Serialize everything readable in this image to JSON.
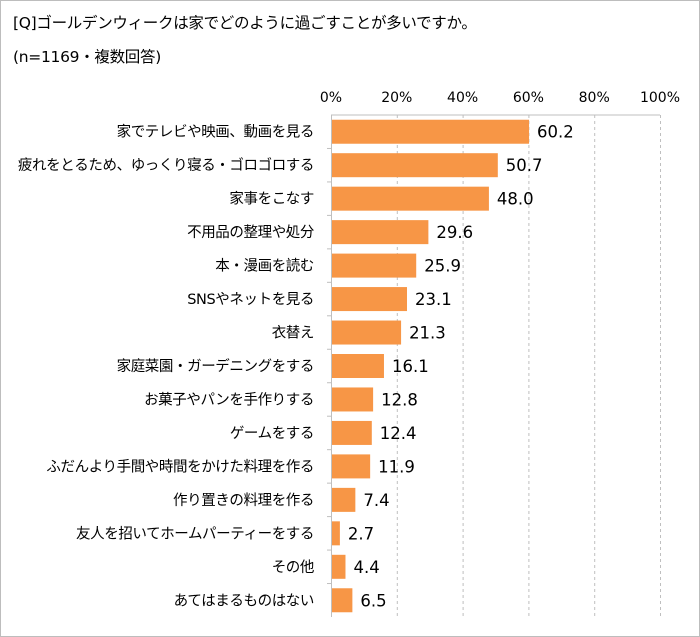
{
  "chart_data": {
    "type": "bar",
    "orientation": "horizontal",
    "title": "[Q]ゴールデンウィークは家でどのように過ごすことが多いですか。",
    "subtitle": "(n=1169・複数回答)",
    "categories": [
      "家でテレビや映画、動画を見る",
      "疲れをとるため、ゆっくり寝る・ゴロゴロする",
      "家事をこなす",
      "不用品の整理や処分",
      "本・漫画を読む",
      "SNSやネットを見る",
      "衣替え",
      "家庭菜園・ガーデニングをする",
      "お菓子やパンを手作りする",
      "ゲームをする",
      "ふだんより手間や時間をかけた料理を作る",
      "作り置きの料理を作る",
      "友人を招いてホームパーティーをする",
      "その他",
      "あてはまるものはない"
    ],
    "values": [
      60.2,
      50.7,
      48.0,
      29.6,
      25.9,
      23.1,
      21.3,
      16.1,
      12.8,
      12.4,
      11.9,
      7.4,
      2.7,
      4.4,
      6.5
    ],
    "value_labels": [
      "60.2",
      "50.7",
      "48.0",
      "29.6",
      "25.9",
      "23.1",
      "21.3",
      "16.1",
      "12.8",
      "12.4",
      "11.9",
      "7.4",
      "2.7",
      "4.4",
      "6.5"
    ],
    "xlim": [
      0,
      100
    ],
    "xticks": [
      0,
      20,
      40,
      60,
      80,
      100
    ],
    "xtick_labels": [
      "0%",
      "20%",
      "40%",
      "60%",
      "80%",
      "100%"
    ],
    "xaxis_position": "top",
    "grid": "vertical dashed",
    "bar_color": "#F79646",
    "grid_color": "#BFBFBF"
  }
}
